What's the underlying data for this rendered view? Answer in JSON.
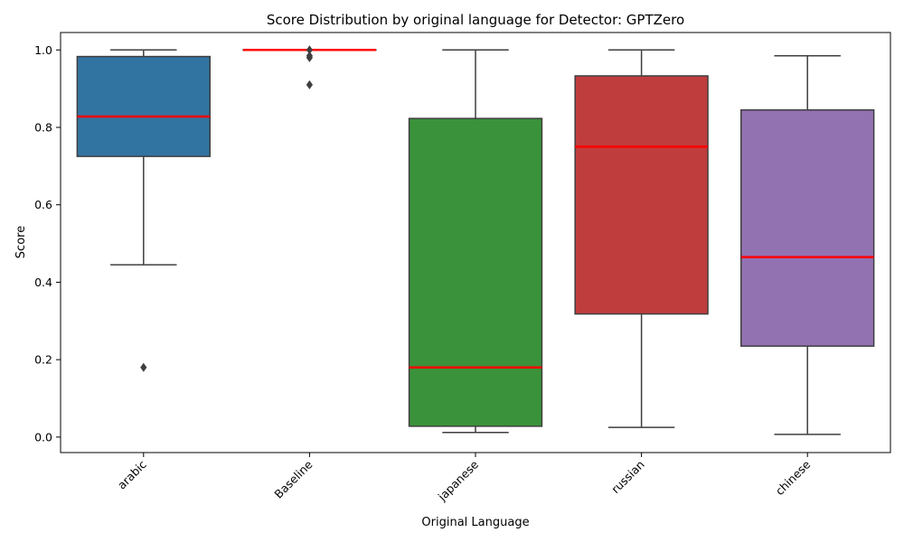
{
  "chart_data": {
    "type": "box",
    "title": "Score Distribution by original language for Detector: GPTZero",
    "xlabel": "Original Language",
    "ylabel": "Score",
    "ylim": [
      -0.04,
      1.045
    ],
    "yticks": [
      0.0,
      0.2,
      0.4,
      0.6,
      0.8,
      1.0
    ],
    "ytick_labels": [
      "0.0",
      "0.2",
      "0.4",
      "0.6",
      "0.8",
      "1.0"
    ],
    "grid": false,
    "median_color": "#ff0000",
    "categories": [
      "arabic",
      "Baseline",
      "japanese",
      "russian",
      "chinese"
    ],
    "boxes": [
      {
        "category": "arabic",
        "color": "#3274a1",
        "whisker_low": 0.445,
        "q1": 0.725,
        "median": 0.828,
        "q3": 0.983,
        "whisker_high": 1.0,
        "outliers": [
          0.18
        ]
      },
      {
        "category": "Baseline",
        "color": "#e1812c",
        "whisker_low": 1.0,
        "q1": 1.0,
        "median": 1.0,
        "q3": 1.0,
        "whisker_high": 1.0,
        "outliers": [
          1.0,
          0.985,
          0.98,
          0.91
        ]
      },
      {
        "category": "japanese",
        "color": "#3a923a",
        "whisker_low": 0.012,
        "q1": 0.028,
        "median": 0.18,
        "q3": 0.823,
        "whisker_high": 1.0,
        "outliers": []
      },
      {
        "category": "russian",
        "color": "#c03d3e",
        "whisker_low": 0.025,
        "q1": 0.318,
        "median": 0.75,
        "q3": 0.933,
        "whisker_high": 1.0,
        "outliers": []
      },
      {
        "category": "chinese",
        "color": "#9372b2",
        "whisker_low": 0.007,
        "q1": 0.235,
        "median": 0.465,
        "q3": 0.845,
        "whisker_high": 0.985,
        "outliers": []
      }
    ]
  }
}
